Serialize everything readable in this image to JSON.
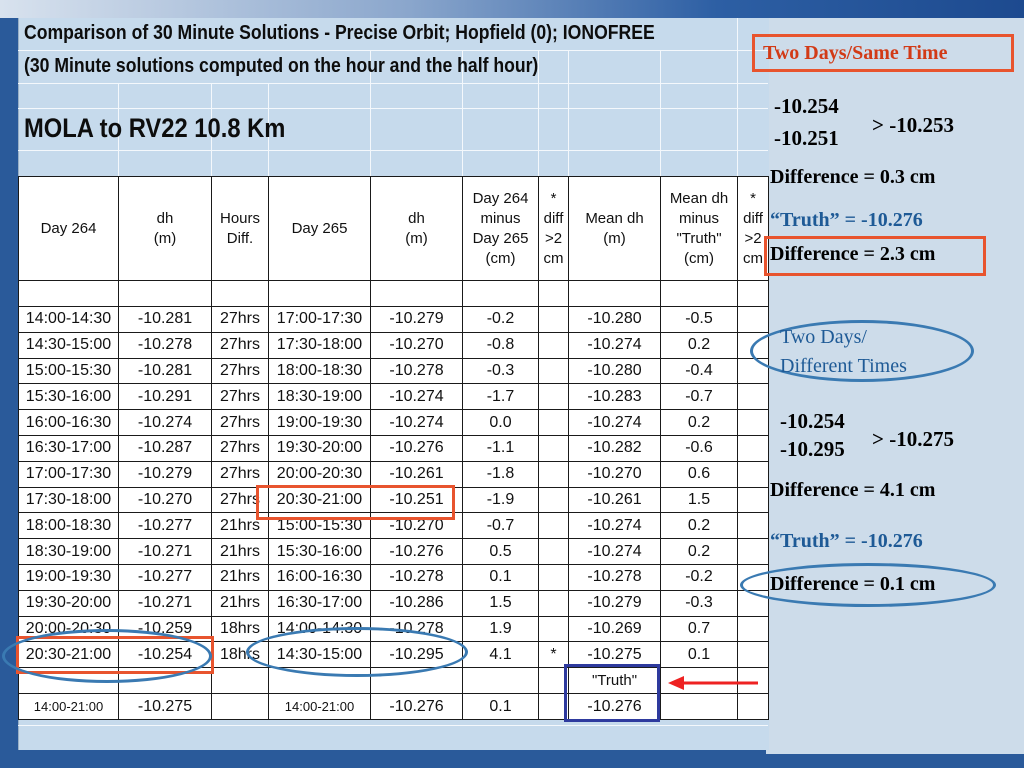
{
  "sheet": {
    "title_line1": "Comparison of 30 Minute Solutions - Precise Orbit; Hopfield (0); IONOFREE",
    "title_line2": "(30 Minute solutions computed on the hour and the half hour)",
    "subtitle": "MOLA to RV22   10.8 Km"
  },
  "table": {
    "headers": {
      "day264": "Day 264",
      "dh1": "dh\n(m)",
      "hours": "Hours\nDiff.",
      "day265": "Day 265",
      "dh2": "dh\n(m)",
      "diff": "Day 264\nminus\nDay 265\n(cm)",
      "star": "*\ndiff\n>2\ncm",
      "mean": "Mean dh\n(m)",
      "meanminus": "Mean dh\nminus\n\"Truth\"\n(cm)",
      "star2": "*\ndiff\n>2\ncm"
    },
    "rows": [
      {
        "t264": "14:00-14:30",
        "dh1": "-10.281",
        "hrs": "27hrs",
        "t265": "17:00-17:30",
        "dh2": "-10.279",
        "diff": "-0.2",
        "star": "",
        "mean": "-10.280",
        "mdt": "-0.5",
        "star2": ""
      },
      {
        "t264": "14:30-15:00",
        "dh1": "-10.278",
        "hrs": "27hrs",
        "t265": "17:30-18:00",
        "dh2": "-10.270",
        "diff": "-0.8",
        "star": "",
        "mean": "-10.274",
        "mdt": "0.2",
        "star2": ""
      },
      {
        "t264": "15:00-15:30",
        "dh1": "-10.281",
        "hrs": "27hrs",
        "t265": "18:00-18:30",
        "dh2": "-10.278",
        "diff": "-0.3",
        "star": "",
        "mean": "-10.280",
        "mdt": "-0.4",
        "star2": ""
      },
      {
        "t264": "15:30-16:00",
        "dh1": "-10.291",
        "hrs": "27hrs",
        "t265": "18:30-19:00",
        "dh2": "-10.274",
        "diff": "-1.7",
        "star": "",
        "mean": "-10.283",
        "mdt": "-0.7",
        "star2": ""
      },
      {
        "t264": "16:00-16:30",
        "dh1": "-10.274",
        "hrs": "27hrs",
        "t265": "19:00-19:30",
        "dh2": "-10.274",
        "diff": "0.0",
        "star": "",
        "mean": "-10.274",
        "mdt": "0.2",
        "star2": ""
      },
      {
        "t264": "16:30-17:00",
        "dh1": "-10.287",
        "hrs": "27hrs",
        "t265": "19:30-20:00",
        "dh2": "-10.276",
        "diff": "-1.1",
        "star": "",
        "mean": "-10.282",
        "mdt": "-0.6",
        "star2": ""
      },
      {
        "t264": "17:00-17:30",
        "dh1": "-10.279",
        "hrs": "27hrs",
        "t265": "20:00-20:30",
        "dh2": "-10.261",
        "diff": "-1.8",
        "star": "",
        "mean": "-10.270",
        "mdt": "0.6",
        "star2": ""
      },
      {
        "t264": "17:30-18:00",
        "dh1": "-10.270",
        "hrs": "27hrs",
        "t265": "20:30-21:00",
        "dh2": "-10.251",
        "diff": "-1.9",
        "star": "",
        "mean": "-10.261",
        "mdt": "1.5",
        "star2": ""
      },
      {
        "t264": "18:00-18:30",
        "dh1": "-10.277",
        "hrs": "21hrs",
        "t265": "15:00-15:30",
        "dh2": "-10.270",
        "diff": "-0.7",
        "star": "",
        "mean": "-10.274",
        "mdt": "0.2",
        "star2": ""
      },
      {
        "t264": "18:30-19:00",
        "dh1": "-10.271",
        "hrs": "21hrs",
        "t265": "15:30-16:00",
        "dh2": "-10.276",
        "diff": "0.5",
        "star": "",
        "mean": "-10.274",
        "mdt": "0.2",
        "star2": ""
      },
      {
        "t264": "19:00-19:30",
        "dh1": "-10.277",
        "hrs": "21hrs",
        "t265": "16:00-16:30",
        "dh2": "-10.278",
        "diff": "0.1",
        "star": "",
        "mean": "-10.278",
        "mdt": "-0.2",
        "star2": ""
      },
      {
        "t264": "19:30-20:00",
        "dh1": "-10.271",
        "hrs": "21hrs",
        "t265": "16:30-17:00",
        "dh2": "-10.286",
        "diff": "1.5",
        "star": "",
        "mean": "-10.279",
        "mdt": "-0.3",
        "star2": ""
      },
      {
        "t264": "20:00-20:30",
        "dh1": "-10.259",
        "hrs": "18hrs",
        "t265": "14:00-14:30",
        "dh2": "-10.278",
        "diff": "1.9",
        "star": "",
        "mean": "-10.269",
        "mdt": "0.7",
        "star2": ""
      },
      {
        "t264": "20:30-21:00",
        "dh1": "-10.254",
        "hrs": "18hrs",
        "t265": "14:30-15:00",
        "dh2": "-10.295",
        "diff": "4.1",
        "star": "*",
        "mean": "-10.275",
        "mdt": "0.1",
        "star2": ""
      }
    ],
    "truth_label": "\"Truth\"",
    "summary": {
      "t264": "14:00-21:00",
      "dh1": "-10.275",
      "t265": "14:00-21:00",
      "dh2": "-10.276",
      "diff": "0.1",
      "mean": "-10.276"
    }
  },
  "annotations": {
    "same_time_label": "Two Days/Same Time",
    "st_val1": "-10.254",
    "st_val2": "-10.251",
    "st_result": ">  -10.253",
    "st_diff1": "Difference = 0.3 cm",
    "st_truth": "“Truth” =  -10.276",
    "st_diff2": "Difference = 2.3 cm",
    "diff_time_label_1": "Two Days/",
    "diff_time_label_2": "Different Times",
    "dt_val1": "-10.254",
    "dt_val2": "-10.295",
    "dt_result": "> -10.275",
    "dt_diff1": "Difference = 4.1 cm",
    "dt_truth": "“Truth” =  -10.276",
    "dt_diff2": "Difference = 0.1 cm"
  },
  "colors": {
    "highlight_red": "#e8542e",
    "highlight_blue": "#3a7ab2",
    "truth_box": "#2e3a9e",
    "annotation_blue": "#1e5a96"
  }
}
